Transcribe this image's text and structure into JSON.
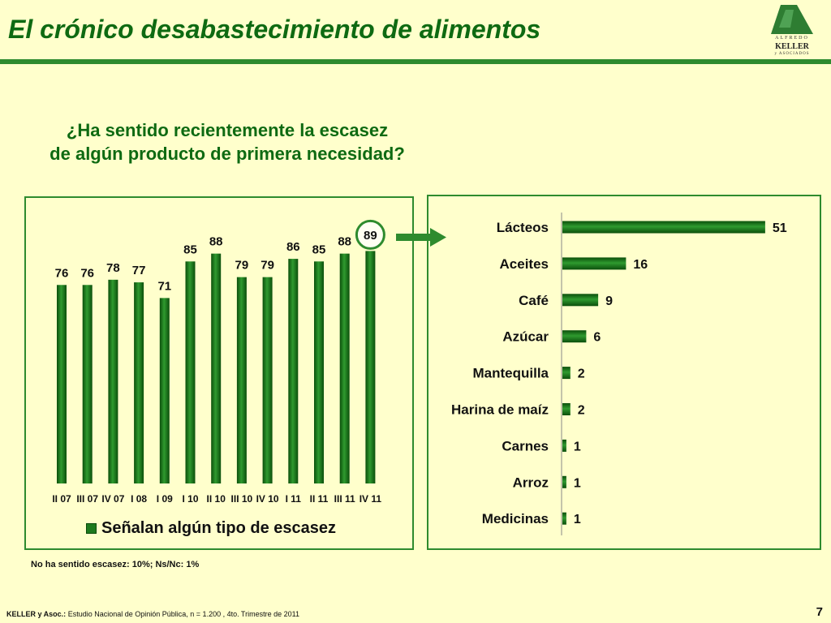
{
  "header": {
    "title": "El crónico desabastecimiento de alimentos",
    "logo": {
      "line1": "ALFREDO",
      "line2": "KELLER",
      "line3": "y ASOCIADOS"
    }
  },
  "question": {
    "line1": "¿Ha sentido recientemente la escasez",
    "line2": "de algún producto de primera necesidad?"
  },
  "colors": {
    "accent": "#0E6A12",
    "bar": "#1E7A1E",
    "frame": "#2E8B2E",
    "background": "#FFFFCC"
  },
  "chart_data": [
    {
      "type": "bar",
      "categories": [
        "II 07",
        "III 07",
        "IV 07",
        "I 08",
        "I 09",
        "I 10",
        "II 10",
        "III 10",
        "IV 10",
        "I 11",
        "II 11",
        "III 11",
        "IV 11"
      ],
      "series": [
        {
          "name": "Señalan algún tipo de escasez",
          "values": [
            76,
            76,
            78,
            77,
            71,
            85,
            88,
            79,
            79,
            86,
            85,
            88,
            89
          ]
        }
      ],
      "highlight_index": 12,
      "ylim": [
        0,
        100
      ],
      "grid": false,
      "legend": "bottom"
    },
    {
      "type": "bar",
      "orientation": "horizontal",
      "categories": [
        "Lácteos",
        "Aceites",
        "Café",
        "Azúcar",
        "Mantequilla",
        "Harina de maíz",
        "Carnes",
        "Arroz",
        "Medicinas"
      ],
      "values": [
        51,
        16,
        9,
        6,
        2,
        2,
        1,
        1,
        1
      ],
      "xlim": [
        0,
        55
      ],
      "grid": false
    }
  ],
  "footnote": "No ha sentido escasez: 10%; Ns/Nc: 1%",
  "footer": {
    "source_org": "KELLER y Asoc.:",
    "source_text": "Estudio Nacional de Opinión Pública, n = 1.200 , 4to. Trimestre de 2011",
    "page_number": "7"
  }
}
